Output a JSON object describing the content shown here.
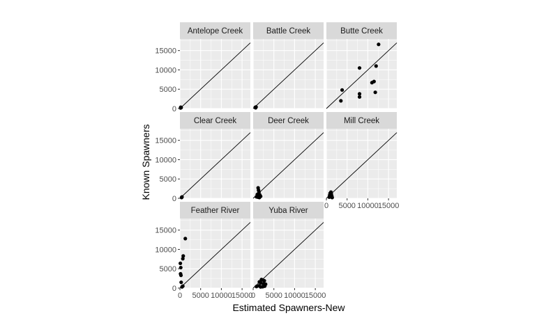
{
  "chart_data": {
    "type": "scatter",
    "facet_layout": "wrap",
    "columns": 3,
    "xlabel": "Estimated Spawners-New",
    "ylabel": "Known Spawners",
    "xlim": [
      0,
      17000
    ],
    "ylim": [
      0,
      18000
    ],
    "x_ticks": [
      0,
      5000,
      10000,
      15000
    ],
    "y_ticks": [
      0,
      5000,
      10000,
      15000
    ],
    "reference_line": "y = x",
    "grid": true,
    "colors": {
      "panel_bg": "#ebebeb",
      "strip_bg": "#d9d9d9",
      "grid": "#ffffff",
      "point": "#000000",
      "line": "#000000"
    },
    "panels": [
      {
        "label": "Antelope Creek",
        "points": [
          [
            150,
            150
          ],
          [
            300,
            250
          ],
          [
            200,
            350
          ]
        ]
      },
      {
        "label": "Battle Creek",
        "points": [
          [
            500,
            300
          ],
          [
            700,
            400
          ],
          [
            600,
            200
          ]
        ]
      },
      {
        "label": "Butte Creek",
        "points": [
          [
            12600,
            16600
          ],
          [
            8000,
            10500
          ],
          [
            12000,
            11000
          ],
          [
            11000,
            6700
          ],
          [
            11500,
            7000
          ],
          [
            3800,
            4800
          ],
          [
            8000,
            3800
          ],
          [
            8000,
            3000
          ],
          [
            11800,
            4200
          ],
          [
            3500,
            2000
          ]
        ]
      },
      {
        "label": "Clear Creek",
        "points": [
          [
            400,
            200
          ],
          [
            500,
            350
          ],
          [
            450,
            300
          ]
        ]
      },
      {
        "label": "Deer Creek",
        "points": [
          [
            1200,
            2700
          ],
          [
            1300,
            2100
          ],
          [
            1400,
            1600
          ],
          [
            1000,
            1000
          ],
          [
            1600,
            900
          ],
          [
            800,
            400
          ],
          [
            1800,
            500
          ],
          [
            1100,
            300
          ],
          [
            1500,
            200
          ]
        ]
      },
      {
        "label": "Mill Creek",
        "points": [
          [
            1100,
            1600
          ],
          [
            900,
            1300
          ],
          [
            1200,
            1100
          ],
          [
            800,
            800
          ],
          [
            1300,
            600
          ],
          [
            1000,
            400
          ],
          [
            1400,
            200
          ],
          [
            700,
            300
          ]
        ]
      },
      {
        "label": "Feather River",
        "points": [
          [
            1300,
            12800
          ],
          [
            800,
            8300
          ],
          [
            700,
            7600
          ],
          [
            100,
            6400
          ],
          [
            200,
            5300
          ],
          [
            150,
            3700
          ],
          [
            250,
            3300
          ],
          [
            300,
            1500
          ],
          [
            500,
            300
          ],
          [
            700,
            500
          ]
        ]
      },
      {
        "label": "Yuba River",
        "points": [
          [
            2000,
            2200
          ],
          [
            2300,
            2100
          ],
          [
            2700,
            1900
          ],
          [
            1500,
            1600
          ],
          [
            1900,
            1300
          ],
          [
            2500,
            1100
          ],
          [
            3000,
            1000
          ],
          [
            1400,
            600
          ],
          [
            2800,
            500
          ],
          [
            800,
            400
          ],
          [
            1800,
            300
          ],
          [
            2300,
            350
          ]
        ]
      }
    ]
  }
}
